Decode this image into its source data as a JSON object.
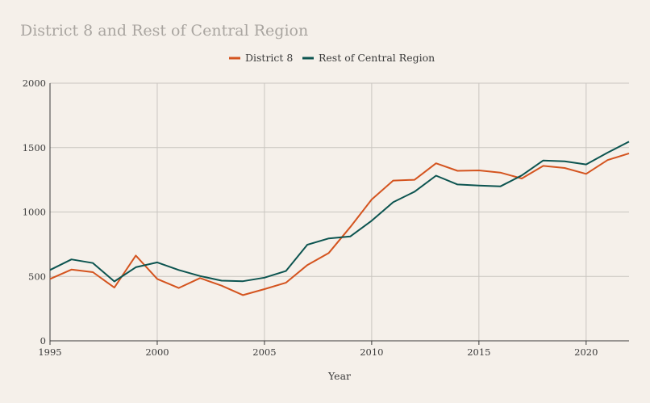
{
  "chart_data": {
    "type": "line",
    "title": "District 8 and Rest of Central Region",
    "xlabel": "Year",
    "ylabel": "",
    "xlim": [
      1995,
      2022
    ],
    "ylim": [
      0,
      2000
    ],
    "x_ticks": [
      "1995",
      "2000",
      "2005",
      "2010",
      "2015",
      "2020"
    ],
    "y_ticks": [
      "0",
      "500",
      "1000",
      "1500",
      "2000"
    ],
    "grid": true,
    "legend_position": "top-center",
    "x": [
      1995,
      1996,
      1997,
      1998,
      1999,
      2000,
      2001,
      2002,
      2003,
      2004,
      2005,
      2006,
      2007,
      2008,
      2009,
      2010,
      2011,
      2012,
      2013,
      2014,
      2015,
      2016,
      2017,
      2018,
      2019,
      2020,
      2021,
      2022
    ],
    "series": [
      {
        "name": "District 8",
        "color": "#d4541f",
        "values": [
          480,
          553,
          533,
          413,
          662,
          480,
          410,
          487,
          428,
          355,
          401,
          451,
          588,
          682,
          883,
          1097,
          1244,
          1250,
          1378,
          1320,
          1323,
          1306,
          1260,
          1358,
          1342,
          1296,
          1403,
          1455
        ]
      },
      {
        "name": "Rest of Central Region",
        "color": "#0c5450",
        "values": [
          550,
          632,
          604,
          461,
          571,
          609,
          550,
          503,
          467,
          463,
          490,
          542,
          746,
          795,
          810,
          932,
          1076,
          1158,
          1282,
          1214,
          1205,
          1199,
          1284,
          1400,
          1394,
          1369,
          1461,
          1546
        ]
      }
    ]
  }
}
